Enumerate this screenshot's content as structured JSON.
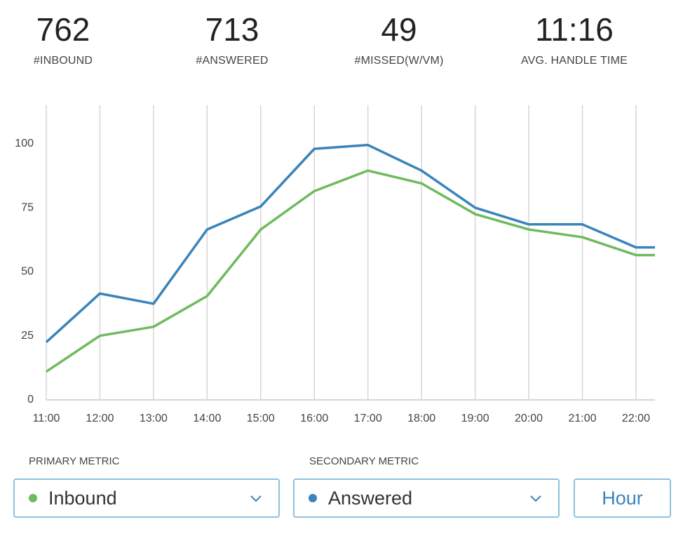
{
  "stats": [
    {
      "value": "762",
      "label": "#INBOUND"
    },
    {
      "value": "713",
      "label": "#ANSWERED"
    },
    {
      "value": "49",
      "label": "#MISSED(W/VM)"
    },
    {
      "value": "11:16",
      "label": "AVG. HANDLE TIME"
    }
  ],
  "chart_data": {
    "type": "line",
    "title": "",
    "xlabel": "",
    "ylabel": "",
    "categories": [
      "11:00",
      "12:00",
      "13:00",
      "14:00",
      "15:00",
      "16:00",
      "17:00",
      "18:00",
      "19:00",
      "20:00",
      "21:00",
      "22:00"
    ],
    "yticks": [
      0,
      25,
      50,
      75,
      100
    ],
    "ylim": [
      0,
      114
    ],
    "grid": "vertical",
    "series": [
      {
        "name": "Answered",
        "color": "#3a84ba",
        "values": [
          22,
          41,
          37,
          66,
          75,
          97.5,
          99,
          89,
          74.5,
          68,
          68,
          59
        ]
      },
      {
        "name": "Inbound",
        "color": "#6fba5f",
        "values": [
          10.5,
          24.5,
          28,
          40,
          66,
          81,
          89,
          84,
          72,
          66,
          63,
          56
        ]
      }
    ]
  },
  "controls": {
    "primary_label": "PRIMARY METRIC",
    "primary_value": "Inbound",
    "primary_color": "#6fba5f",
    "secondary_label": "SECONDARY METRIC",
    "secondary_value": "Answered",
    "secondary_color": "#3a84ba",
    "interval": "Hour"
  }
}
